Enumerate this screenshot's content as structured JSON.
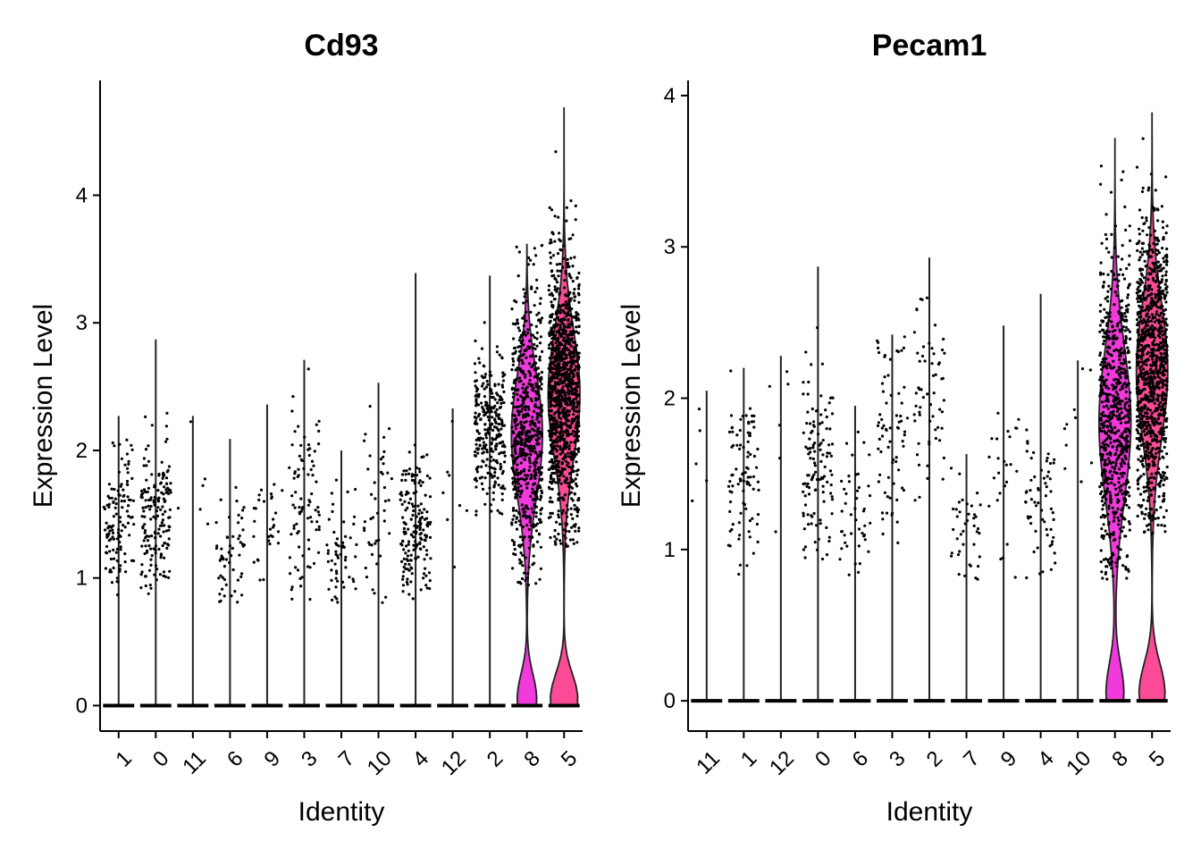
{
  "chart_data": [
    {
      "type": "violin",
      "title": "Cd93",
      "xlabel": "Identity",
      "ylabel": "Expression Level",
      "ylim": [
        -0.2,
        4.9
      ],
      "yticks": [
        0,
        1,
        2,
        3,
        4
      ],
      "categories": [
        "1",
        "0",
        "11",
        "6",
        "9",
        "3",
        "7",
        "10",
        "4",
        "12",
        "2",
        "8",
        "5"
      ],
      "fill_colors": {
        "8": "#F03ADB",
        "5": "#FB4B97"
      },
      "groups": [
        {
          "id": "1",
          "max": 2.27,
          "center": 1.42,
          "spread": 0.28,
          "dots": 120
        },
        {
          "id": "0",
          "max": 2.87,
          "center": 1.48,
          "spread": 0.28,
          "dots": 170
        },
        {
          "id": "11",
          "max": 2.27,
          "center": 1.6,
          "spread": 0.4,
          "dots": 6
        },
        {
          "id": "6",
          "max": 2.09,
          "center": 1.18,
          "spread": 0.25,
          "dots": 55
        },
        {
          "id": "9",
          "max": 2.36,
          "center": 1.4,
          "spread": 0.28,
          "dots": 30
        },
        {
          "id": "3",
          "max": 2.71,
          "center": 1.65,
          "spread": 0.4,
          "dots": 85
        },
        {
          "id": "7",
          "max": 2.0,
          "center": 1.18,
          "spread": 0.22,
          "dots": 55
        },
        {
          "id": "10",
          "max": 2.53,
          "center": 1.65,
          "spread": 0.4,
          "dots": 45
        },
        {
          "id": "4",
          "max": 3.39,
          "center": 1.38,
          "spread": 0.3,
          "dots": 180
        },
        {
          "id": "12",
          "max": 2.33,
          "center": 1.7,
          "spread": 0.4,
          "dots": 8
        },
        {
          "id": "2",
          "max": 3.37,
          "center": 2.15,
          "spread": 0.3,
          "dots": 280
        },
        {
          "id": "8",
          "max": 3.62,
          "center": 2.15,
          "spread": 0.55,
          "dots": 650,
          "zero_width": 0.6,
          "mid_width": 1.0
        },
        {
          "id": "5",
          "max": 4.69,
          "center": 2.45,
          "spread": 0.55,
          "dots": 1100,
          "zero_width": 0.85,
          "mid_width": 1.0
        }
      ]
    },
    {
      "type": "violin",
      "title": "Pecam1",
      "xlabel": "Identity",
      "ylabel": "Expression Level",
      "ylim": [
        -0.2,
        4.1
      ],
      "yticks": [
        0,
        1,
        2,
        3,
        4
      ],
      "categories": [
        "11",
        "1",
        "12",
        "0",
        "6",
        "3",
        "2",
        "7",
        "9",
        "4",
        "10",
        "8",
        "5"
      ],
      "fill_colors": {
        "8": "#F03ADB",
        "5": "#FB4B97"
      },
      "groups": [
        {
          "id": "11",
          "max": 2.05,
          "center": 1.7,
          "spread": 0.3,
          "dots": 5
        },
        {
          "id": "1",
          "max": 2.2,
          "center": 1.45,
          "spread": 0.3,
          "dots": 90
        },
        {
          "id": "12",
          "max": 2.28,
          "center": 1.6,
          "spread": 0.4,
          "dots": 6
        },
        {
          "id": "0",
          "max": 2.87,
          "center": 1.55,
          "spread": 0.3,
          "dots": 120
        },
        {
          "id": "6",
          "max": 1.95,
          "center": 1.25,
          "spread": 0.28,
          "dots": 45
        },
        {
          "id": "3",
          "max": 2.42,
          "center": 1.75,
          "spread": 0.4,
          "dots": 70
        },
        {
          "id": "2",
          "max": 2.93,
          "center": 2.05,
          "spread": 0.35,
          "dots": 60
        },
        {
          "id": "7",
          "max": 1.63,
          "center": 1.15,
          "spread": 0.22,
          "dots": 40
        },
        {
          "id": "9",
          "max": 2.48,
          "center": 1.45,
          "spread": 0.3,
          "dots": 25
        },
        {
          "id": "4",
          "max": 2.69,
          "center": 1.3,
          "spread": 0.25,
          "dots": 60
        },
        {
          "id": "10",
          "max": 2.25,
          "center": 1.9,
          "spread": 0.3,
          "dots": 10
        },
        {
          "id": "8",
          "max": 3.72,
          "center": 1.85,
          "spread": 0.55,
          "dots": 700,
          "zero_width": 0.55,
          "mid_width": 1.0
        },
        {
          "id": "5",
          "max": 3.89,
          "center": 2.2,
          "spread": 0.5,
          "dots": 1000,
          "zero_width": 0.8,
          "mid_width": 1.0
        }
      ]
    }
  ]
}
